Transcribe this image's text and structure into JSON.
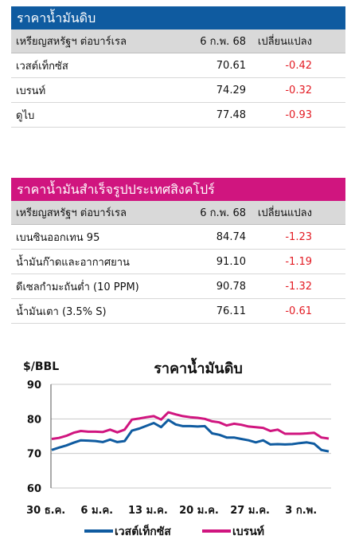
{
  "crude": {
    "title": "ราคาน้ำมันดิบ",
    "headers": [
      "เหรียญสหรัฐฯ ต่อบาร์เรล",
      "6 ก.พ. 68",
      "เปลี่ยนแปลง"
    ],
    "rows": [
      {
        "name": "เวสต์เท็กซัส",
        "price": "70.61",
        "change": "-0.42"
      },
      {
        "name": "เบรนท์",
        "price": "74.29",
        "change": "-0.32"
      },
      {
        "name": "ดูไบ",
        "price": "77.48",
        "change": "-0.93"
      }
    ]
  },
  "refined": {
    "title": "ราคาน้ำมันสำเร็จรูปประเทศสิงคโปร์",
    "headers": [
      "เหรียญสหรัฐฯ ต่อบาร์เรล",
      "6 ก.พ. 68",
      "เปลี่ยนแปลง"
    ],
    "rows": [
      {
        "name": "เบนซินออกเทน 95",
        "price": "84.74",
        "change": "-1.23"
      },
      {
        "name": "น้ำมันก๊าดและอากาศยาน",
        "price": "91.10",
        "change": "-1.19"
      },
      {
        "name": "ดีเซลกำมะถันต่ำ (10 PPM)",
        "price": "90.78",
        "change": "-1.32"
      },
      {
        "name": "น้ำมันเตา (3.5% S)",
        "price": "76.11",
        "change": "-0.61"
      }
    ]
  },
  "chart_data": {
    "type": "line",
    "title": "ราคาน้ำมันดิบ",
    "ylabel": "$/BBL",
    "xlabel": "",
    "ylim": [
      60,
      90
    ],
    "yticks": [
      60,
      70,
      80,
      90
    ],
    "x_ticks": [
      "30 ธ.ค.",
      "6 ม.ค.",
      "13 ม.ค.",
      "20 ม.ค.",
      "27 ม.ค.",
      "3 ก.พ."
    ],
    "grid": true,
    "legend": "bottom",
    "series": [
      {
        "name": "เวสต์เท็กซัส",
        "color": "#0f5ba0",
        "values": [
          71.0,
          71.7,
          72.3,
          73.1,
          73.8,
          73.7,
          73.6,
          73.3,
          74.0,
          73.3,
          73.6,
          76.6,
          77.2,
          78.0,
          78.8,
          77.6,
          79.7,
          78.4,
          77.9,
          77.9,
          77.8,
          77.9,
          75.8,
          75.4,
          74.6,
          74.6,
          74.2,
          73.8,
          73.2,
          73.8,
          72.6,
          72.7,
          72.6,
          72.7,
          73.0,
          73.2,
          72.8,
          71.0,
          70.6
        ]
      },
      {
        "name": "เบรนท์",
        "color": "#d0157f",
        "values": [
          74.2,
          74.5,
          75.1,
          76.0,
          76.5,
          76.3,
          76.3,
          76.2,
          76.9,
          76.1,
          76.9,
          79.8,
          80.1,
          80.5,
          80.8,
          79.8,
          81.9,
          81.3,
          80.8,
          80.5,
          80.3,
          80.0,
          79.3,
          79.0,
          78.1,
          78.6,
          78.3,
          77.8,
          77.6,
          77.4,
          76.5,
          76.9,
          75.7,
          75.7,
          75.7,
          75.8,
          76.0,
          74.6,
          74.3
        ]
      }
    ]
  }
}
